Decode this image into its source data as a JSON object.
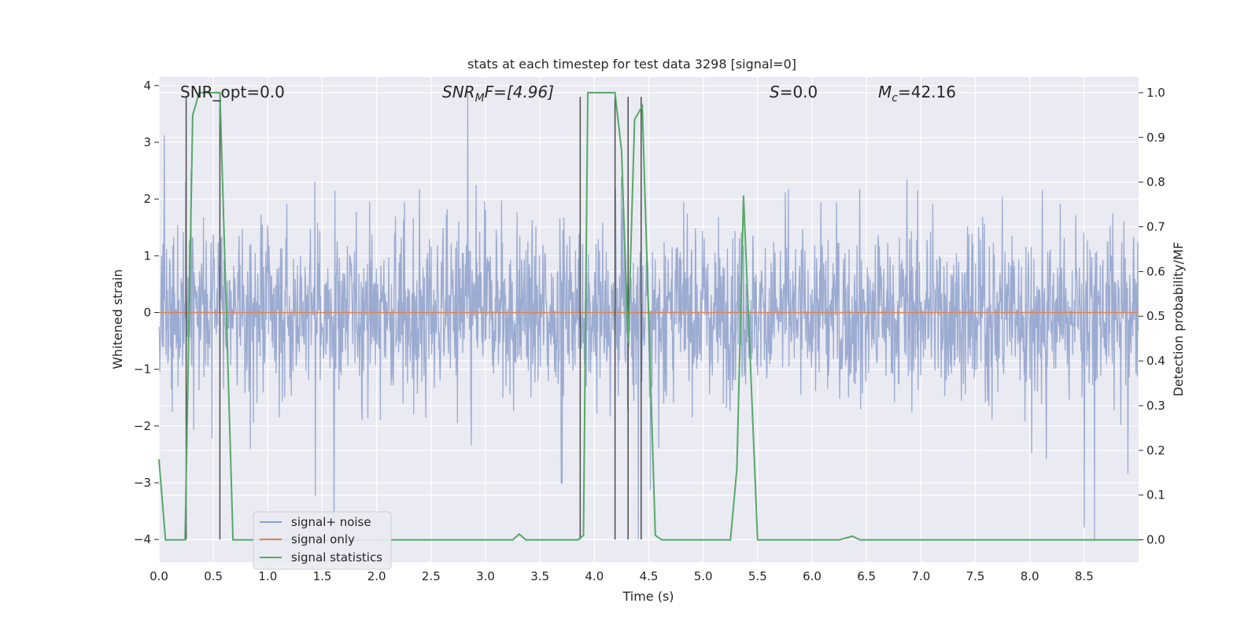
{
  "chart_data": {
    "type": "line",
    "title": "stats at each timestep for test data 3298 [signal=0]",
    "xlabel": "Time (s)",
    "ylabel_left": "Whitened strain",
    "ylabel_right": "Detection probability/MF",
    "xlim": [
      0.0,
      9.0
    ],
    "ylim_left": [
      -4.4,
      4.15
    ],
    "ylim_right": [
      -0.05,
      1.035
    ],
    "xticks": [
      "0.0",
      "0.5",
      "1.0",
      "1.5",
      "2.0",
      "2.5",
      "3.0",
      "3.5",
      "4.0",
      "4.5",
      "5.0",
      "5.5",
      "6.0",
      "6.5",
      "7.0",
      "7.5",
      "8.0",
      "8.5"
    ],
    "yticks_left": [
      "4",
      "3",
      "2",
      "1",
      "0",
      "−1",
      "−2",
      "−3",
      "−4"
    ],
    "yticks_right": [
      "1.0",
      "0.9",
      "0.8",
      "0.7",
      "0.6",
      "0.5",
      "0.4",
      "0.3",
      "0.2",
      "0.1",
      "0.0"
    ],
    "grid": true,
    "annotations": {
      "snr_opt": "SNR_opt=0.0",
      "snr_mf_prefix": "SNR",
      "snr_mf_sub": "M",
      "snr_mf_suffix": "F=[4.96]",
      "s_prefix": "S",
      "s_suffix": "=0.0",
      "mc_prefix": "M",
      "mc_sub": "c",
      "mc_suffix": "=42.16"
    },
    "legend": {
      "placement": "lower-left",
      "entries": [
        "signal+ noise",
        "signal only",
        "signal statistics"
      ]
    },
    "colors": {
      "signal_noise": "#8da0cb",
      "signal_only": "#dd8452",
      "signal_statistics": "#55a868",
      "markers": "#4c4c4c",
      "background": "#eaeaf2"
    },
    "series": [
      {
        "name": "signal+ noise",
        "description": "dense whitened strain noise, approx range",
        "envelope": {
          "typical_abs": 1.5,
          "peak_max": 3.9,
          "peak_min": -4.0
        }
      },
      {
        "name": "signal only",
        "values_constant": 0.0
      },
      {
        "name": "signal statistics",
        "x": [
          0.0,
          0.06,
          0.24,
          0.31,
          0.37,
          0.56,
          0.68,
          3.25,
          3.31,
          3.37,
          3.85,
          3.9,
          3.94,
          4.19,
          4.25,
          4.31,
          4.37,
          4.44,
          4.56,
          4.62,
          5.25,
          5.31,
          5.37,
          5.5,
          6.25,
          6.37,
          6.44,
          9.0
        ],
        "y": [
          0.18,
          0.0,
          0.0,
          0.95,
          1.0,
          1.0,
          0.0,
          0.0,
          0.013,
          0.0,
          0.0,
          0.01,
          1.0,
          1.0,
          0.87,
          0.44,
          0.94,
          0.97,
          0.01,
          0.0,
          0.0,
          0.16,
          0.77,
          0.0,
          0.0,
          0.008,
          0.0,
          0.0
        ]
      }
    ],
    "vertical_markers": [
      {
        "x": 0.25,
        "y_top": 3.8
      },
      {
        "x": 0.56,
        "y_top": 3.72
      },
      {
        "x": 3.87,
        "y_top": 3.8
      },
      {
        "x": 4.19,
        "y_top": 3.8
      },
      {
        "x": 4.31,
        "y_top": 3.8
      },
      {
        "x": 4.43,
        "y_top": 3.8
      }
    ]
  }
}
